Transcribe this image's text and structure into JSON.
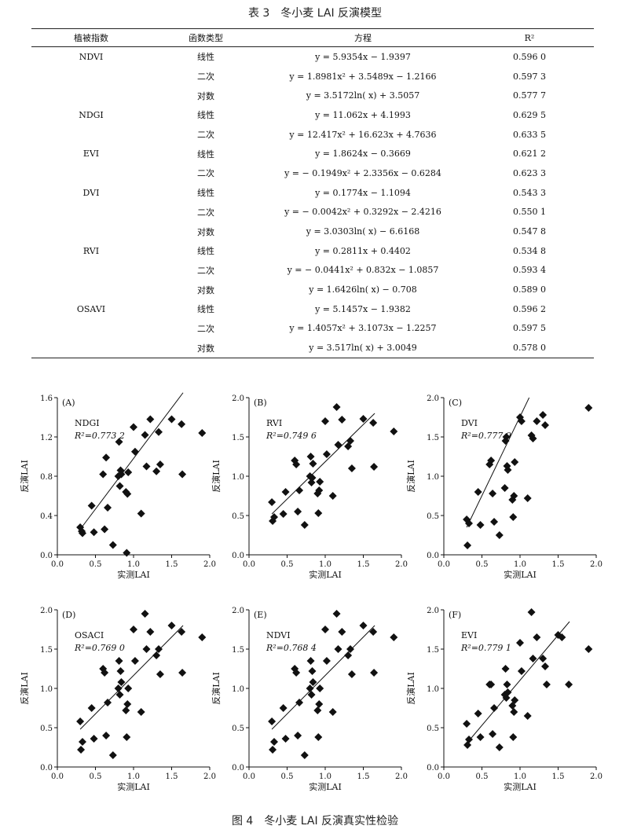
{
  "table": {
    "caption": "表 3　冬小麦 LAI 反演模型",
    "headers": [
      "植被指数",
      "函数类型",
      "方程",
      "R²"
    ],
    "rows": [
      {
        "index": "NDVI",
        "type": "线性",
        "equation": "y = 5.9354x − 1.9397",
        "r2": "0.596 0"
      },
      {
        "index": "",
        "type": "二次",
        "equation": "y = 1.8981x² + 3.5489x − 1.2166",
        "r2": "0.597 3"
      },
      {
        "index": "",
        "type": "对数",
        "equation": "y = 3.5172ln( x) + 3.5057",
        "r2": "0.577 7"
      },
      {
        "index": "NDGI",
        "type": "线性",
        "equation": "y = 11.062x + 4.1993",
        "r2": "0.629 5"
      },
      {
        "index": "",
        "type": "二次",
        "equation": "y = 12.417x² + 16.623x + 4.7636",
        "r2": "0.633 5"
      },
      {
        "index": "EVI",
        "type": "线性",
        "equation": "y = 1.8624x − 0.3669",
        "r2": "0.621 2"
      },
      {
        "index": "",
        "type": "二次",
        "equation": "y = − 0.1949x² + 2.3356x − 0.6284",
        "r2": "0.623 3"
      },
      {
        "index": "DVI",
        "type": "线性",
        "equation": "y = 0.1774x − 1.1094",
        "r2": "0.543 3"
      },
      {
        "index": "",
        "type": "二次",
        "equation": "y = − 0.0042x² + 0.3292x − 2.4216",
        "r2": "0.550 1"
      },
      {
        "index": "",
        "type": "对数",
        "equation": "y = 3.0303ln( x) − 6.6168",
        "r2": "0.547 8"
      },
      {
        "index": "RVI",
        "type": "线性",
        "equation": "y = 0.2811x + 0.4402",
        "r2": "0.534 8"
      },
      {
        "index": "",
        "type": "二次",
        "equation": "y = − 0.0441x² + 0.832x − 1.0857",
        "r2": "0.593 4"
      },
      {
        "index": "",
        "type": "对数",
        "equation": "y = 1.6426ln( x) − 0.708",
        "r2": "0.589 0"
      },
      {
        "index": "OSAVI",
        "type": "线性",
        "equation": "y = 5.1457x − 1.9382",
        "r2": "0.596 2"
      },
      {
        "index": "",
        "type": "二次",
        "equation": "y = 1.4057x² + 3.1073x − 1.2257",
        "r2": "0.597 5"
      },
      {
        "index": "",
        "type": "对数",
        "equation": "y = 3.517ln( x) + 3.0049",
        "r2": "0.578 0"
      }
    ]
  },
  "figure_caption": "图 4　冬小麦 LAI 反演真实性检验",
  "chart_data": [
    {
      "type": "scatter",
      "panel": "(A)",
      "label": "NDGI",
      "r2_text": "R²=0.773 2",
      "xlabel": "实测LAI",
      "ylabel": "反演LAI",
      "xlim": [
        0,
        2.0
      ],
      "ylim": [
        0,
        1.6
      ],
      "xticks": [
        "0.0",
        "0.5",
        "1.0",
        "1.5",
        "2.0"
      ],
      "yticks": [
        "0.0",
        "0.4",
        "0.8",
        "1.2",
        "1.6"
      ],
      "line": [
        [
          0.31,
          0.27
        ],
        [
          1.65,
          1.65
        ]
      ],
      "points": [
        [
          0.3,
          0.28
        ],
        [
          0.32,
          0.24
        ],
        [
          0.33,
          0.22
        ],
        [
          0.45,
          0.5
        ],
        [
          0.48,
          0.23
        ],
        [
          0.6,
          0.82
        ],
        [
          0.62,
          0.26
        ],
        [
          0.64,
          0.99
        ],
        [
          0.66,
          0.48
        ],
        [
          0.73,
          0.1
        ],
        [
          0.8,
          0.8
        ],
        [
          0.81,
          1.15
        ],
        [
          0.82,
          0.7
        ],
        [
          0.83,
          0.86
        ],
        [
          0.84,
          0.82
        ],
        [
          0.9,
          0.64
        ],
        [
          0.91,
          0.02
        ],
        [
          0.92,
          0.62
        ],
        [
          0.93,
          0.84
        ],
        [
          1.0,
          1.3
        ],
        [
          1.02,
          1.05
        ],
        [
          1.1,
          0.42
        ],
        [
          1.15,
          1.22
        ],
        [
          1.17,
          0.9
        ],
        [
          1.22,
          1.38
        ],
        [
          1.3,
          0.85
        ],
        [
          1.33,
          1.25
        ],
        [
          1.35,
          0.92
        ],
        [
          1.5,
          1.38
        ],
        [
          1.63,
          1.33
        ],
        [
          1.64,
          0.82
        ],
        [
          1.9,
          1.24
        ]
      ]
    },
    {
      "type": "scatter",
      "panel": "(B)",
      "label": "RVI",
      "r2_text": "R²=0.749 6",
      "xlabel": "实测LAI",
      "ylabel": "反演LAI",
      "xlim": [
        0,
        2.0
      ],
      "ylim": [
        0,
        2.0
      ],
      "xticks": [
        "0.0",
        "0.5",
        "1.0",
        "1.5",
        "2.0"
      ],
      "yticks": [
        "0.0",
        "0.5",
        "1.0",
        "1.5",
        "2.0"
      ],
      "line": [
        [
          0.3,
          0.52
        ],
        [
          1.65,
          1.8
        ]
      ],
      "points": [
        [
          0.3,
          0.67
        ],
        [
          0.31,
          0.43
        ],
        [
          0.33,
          0.48
        ],
        [
          0.45,
          0.52
        ],
        [
          0.48,
          0.8
        ],
        [
          0.6,
          1.2
        ],
        [
          0.62,
          1.15
        ],
        [
          0.64,
          0.55
        ],
        [
          0.66,
          0.82
        ],
        [
          0.73,
          0.38
        ],
        [
          0.8,
          1.0
        ],
        [
          0.81,
          1.25
        ],
        [
          0.82,
          0.92
        ],
        [
          0.83,
          0.98
        ],
        [
          0.84,
          1.16
        ],
        [
          0.9,
          0.78
        ],
        [
          0.91,
          0.53
        ],
        [
          0.92,
          0.82
        ],
        [
          0.93,
          0.93
        ],
        [
          1.0,
          1.7
        ],
        [
          1.02,
          1.28
        ],
        [
          1.1,
          0.75
        ],
        [
          1.15,
          1.88
        ],
        [
          1.17,
          1.4
        ],
        [
          1.22,
          1.72
        ],
        [
          1.3,
          1.38
        ],
        [
          1.33,
          1.45
        ],
        [
          1.35,
          1.1
        ],
        [
          1.5,
          1.73
        ],
        [
          1.63,
          1.68
        ],
        [
          1.64,
          1.12
        ],
        [
          1.9,
          1.57
        ]
      ]
    },
    {
      "type": "scatter",
      "panel": "(C)",
      "label": "DVI",
      "r2_text": "R²=0.777 9",
      "xlabel": "实测LAI",
      "ylabel": "反演LAI",
      "xlim": [
        0,
        2.0
      ],
      "ylim": [
        0,
        2.0
      ],
      "xticks": [
        "0.0",
        "0.5",
        "1.0",
        "1.5",
        "2.0"
      ],
      "yticks": [
        "0.0",
        "0.5",
        "1.0",
        "1.5",
        "2.0"
      ],
      "line": [
        [
          0.3,
          0.35
        ],
        [
          1.12,
          2.0
        ]
      ],
      "points": [
        [
          0.3,
          0.45
        ],
        [
          0.31,
          0.12
        ],
        [
          0.33,
          0.4
        ],
        [
          0.45,
          0.8
        ],
        [
          0.48,
          0.38
        ],
        [
          0.6,
          1.15
        ],
        [
          0.62,
          1.2
        ],
        [
          0.64,
          0.78
        ],
        [
          0.66,
          0.42
        ],
        [
          0.73,
          0.25
        ],
        [
          0.8,
          0.85
        ],
        [
          0.81,
          1.45
        ],
        [
          0.82,
          1.5
        ],
        [
          0.83,
          1.13
        ],
        [
          0.84,
          1.08
        ],
        [
          0.9,
          0.7
        ],
        [
          0.91,
          0.48
        ],
        [
          0.92,
          0.75
        ],
        [
          0.93,
          1.18
        ],
        [
          1.0,
          1.75
        ],
        [
          1.02,
          1.7
        ],
        [
          1.1,
          0.72
        ],
        [
          1.15,
          1.52
        ],
        [
          1.17,
          1.48
        ],
        [
          1.22,
          1.7
        ],
        [
          1.3,
          1.78
        ],
        [
          1.33,
          1.65
        ],
        [
          1.9,
          1.87
        ]
      ]
    },
    {
      "type": "scatter",
      "panel": "(D)",
      "label": "OSACI",
      "r2_text": "R²=0.769 0",
      "xlabel": "实测LAI",
      "ylabel": "反演LAI",
      "xlim": [
        0,
        2.0
      ],
      "ylim": [
        0,
        2.0
      ],
      "xticks": [
        "0.0",
        "0.5",
        "1.0",
        "1.5",
        "2.0"
      ],
      "yticks": [
        "0.0",
        "0.5",
        "1.0",
        "1.5",
        "2.0"
      ],
      "line": [
        [
          0.3,
          0.48
        ],
        [
          1.65,
          1.8
        ]
      ],
      "points": [
        [
          0.3,
          0.58
        ],
        [
          0.31,
          0.22
        ],
        [
          0.33,
          0.32
        ],
        [
          0.45,
          0.75
        ],
        [
          0.48,
          0.36
        ],
        [
          0.6,
          1.25
        ],
        [
          0.62,
          1.2
        ],
        [
          0.64,
          0.4
        ],
        [
          0.66,
          0.82
        ],
        [
          0.73,
          0.15
        ],
        [
          0.8,
          1.0
        ],
        [
          0.81,
          1.35
        ],
        [
          0.82,
          0.92
        ],
        [
          0.83,
          1.22
        ],
        [
          0.84,
          1.08
        ],
        [
          0.9,
          0.72
        ],
        [
          0.91,
          0.38
        ],
        [
          0.92,
          0.8
        ],
        [
          0.93,
          1.0
        ],
        [
          1.0,
          1.75
        ],
        [
          1.02,
          1.35
        ],
        [
          1.1,
          0.7
        ],
        [
          1.15,
          1.95
        ],
        [
          1.17,
          1.5
        ],
        [
          1.22,
          1.72
        ],
        [
          1.3,
          1.42
        ],
        [
          1.33,
          1.5
        ],
        [
          1.35,
          1.18
        ],
        [
          1.5,
          1.8
        ],
        [
          1.63,
          1.72
        ],
        [
          1.64,
          1.2
        ],
        [
          1.9,
          1.65
        ]
      ]
    },
    {
      "type": "scatter",
      "panel": "(E)",
      "label": "NDVI",
      "r2_text": "R²=0.768 4",
      "xlabel": "实测LAI",
      "ylabel": "反演LAI",
      "xlim": [
        0,
        2.0
      ],
      "ylim": [
        0,
        2.0
      ],
      "xticks": [
        "0.0",
        "0.5",
        "1.0",
        "1.5",
        "2.0"
      ],
      "yticks": [
        "0.0",
        "0.5",
        "1.0",
        "1.5",
        "2.0"
      ],
      "line": [
        [
          0.3,
          0.48
        ],
        [
          1.65,
          1.8
        ]
      ],
      "points": [
        [
          0.3,
          0.58
        ],
        [
          0.31,
          0.22
        ],
        [
          0.33,
          0.32
        ],
        [
          0.45,
          0.75
        ],
        [
          0.48,
          0.36
        ],
        [
          0.6,
          1.25
        ],
        [
          0.62,
          1.2
        ],
        [
          0.64,
          0.4
        ],
        [
          0.66,
          0.82
        ],
        [
          0.73,
          0.15
        ],
        [
          0.8,
          1.0
        ],
        [
          0.81,
          1.35
        ],
        [
          0.82,
          0.92
        ],
        [
          0.83,
          1.22
        ],
        [
          0.84,
          1.08
        ],
        [
          0.9,
          0.72
        ],
        [
          0.91,
          0.38
        ],
        [
          0.92,
          0.8
        ],
        [
          0.93,
          1.0
        ],
        [
          1.0,
          1.75
        ],
        [
          1.02,
          1.35
        ],
        [
          1.1,
          0.7
        ],
        [
          1.15,
          1.95
        ],
        [
          1.17,
          1.5
        ],
        [
          1.22,
          1.72
        ],
        [
          1.3,
          1.42
        ],
        [
          1.33,
          1.5
        ],
        [
          1.35,
          1.18
        ],
        [
          1.5,
          1.8
        ],
        [
          1.63,
          1.72
        ],
        [
          1.64,
          1.2
        ],
        [
          1.9,
          1.65
        ]
      ]
    },
    {
      "type": "scatter",
      "panel": "(F)",
      "label": "EVI",
      "r2_text": "R²=0.779 1",
      "xlabel": "实测LAI",
      "ylabel": "反演LAI",
      "xlim": [
        0,
        2.0
      ],
      "ylim": [
        0,
        2.0
      ],
      "xticks": [
        "0.0",
        "0.5",
        "1.0",
        "1.5",
        "2.0"
      ],
      "yticks": [
        "0.0",
        "0.5",
        "1.0",
        "1.5",
        "2.0"
      ],
      "line": [
        [
          0.3,
          0.3
        ],
        [
          1.65,
          1.85
        ]
      ],
      "points": [
        [
          0.3,
          0.55
        ],
        [
          0.31,
          0.28
        ],
        [
          0.33,
          0.35
        ],
        [
          0.45,
          0.68
        ],
        [
          0.48,
          0.38
        ],
        [
          0.6,
          1.05
        ],
        [
          0.62,
          1.05
        ],
        [
          0.64,
          0.42
        ],
        [
          0.66,
          0.75
        ],
        [
          0.73,
          0.25
        ],
        [
          0.8,
          0.92
        ],
        [
          0.81,
          1.25
        ],
        [
          0.82,
          0.88
        ],
        [
          0.83,
          1.05
        ],
        [
          0.84,
          0.95
        ],
        [
          0.9,
          0.78
        ],
        [
          0.91,
          0.38
        ],
        [
          0.92,
          0.7
        ],
        [
          0.93,
          0.85
        ],
        [
          1.0,
          1.58
        ],
        [
          1.02,
          1.22
        ],
        [
          1.1,
          0.65
        ],
        [
          1.15,
          1.97
        ],
        [
          1.17,
          1.38
        ],
        [
          1.22,
          1.65
        ],
        [
          1.3,
          1.38
        ],
        [
          1.33,
          1.28
        ],
        [
          1.35,
          1.05
        ],
        [
          1.5,
          1.68
        ],
        [
          1.55,
          1.65
        ],
        [
          1.64,
          1.05
        ],
        [
          1.9,
          1.5
        ]
      ]
    }
  ]
}
